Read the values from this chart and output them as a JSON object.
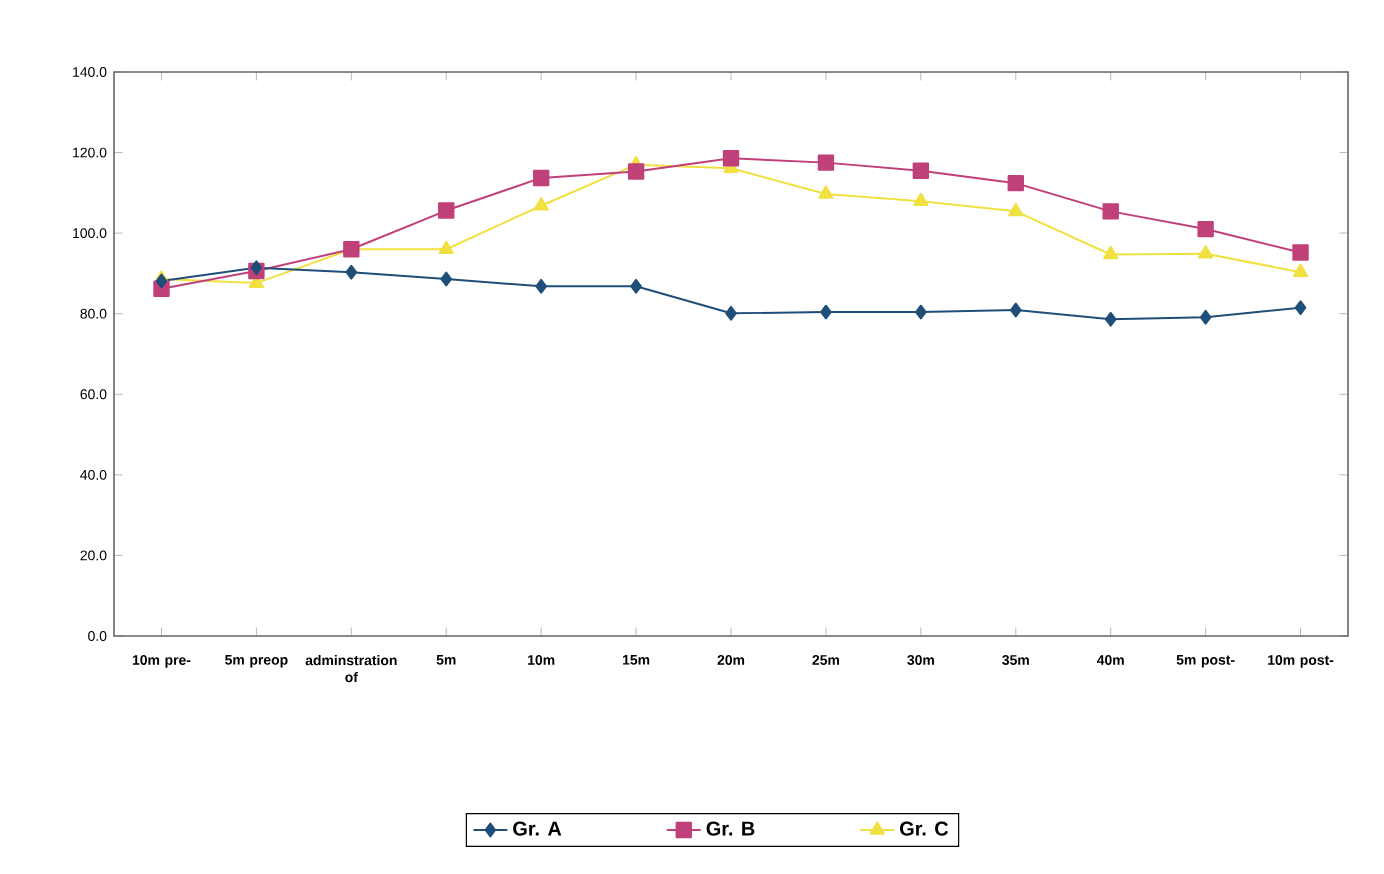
{
  "chart_data": {
    "type": "line",
    "categories": [
      "10m pre-",
      "5m preop",
      "adminstration of",
      "5m",
      "10m",
      "15m",
      "20m",
      "25m",
      "30m",
      "35m",
      "40m",
      "5m post-",
      "10m post-"
    ],
    "series": [
      {
        "name": "Gr. A",
        "color": "#1f4e79",
        "marker": "diamond",
        "values": [
          88.1,
          91.4,
          90.3,
          88.6,
          86.8,
          86.8,
          80.1,
          80.4,
          80.4,
          80.9,
          78.6,
          79.1,
          81.5
        ]
      },
      {
        "name": "Gr. B",
        "color": "#c0407a",
        "marker": "square",
        "values": [
          86.2,
          90.6,
          96.0,
          105.6,
          113.7,
          115.3,
          118.6,
          117.5,
          115.5,
          112.4,
          105.4,
          101.0,
          95.2
        ]
      },
      {
        "name": "Gr. C",
        "color": "#f0e040",
        "marker": "triangle",
        "values": [
          88.6,
          87.6,
          96.0,
          96.0,
          106.8,
          117.0,
          116.1,
          109.7,
          107.9,
          105.4,
          94.7,
          94.9,
          90.3
        ]
      }
    ],
    "ylim": [
      0,
      140
    ],
    "yticks": [
      {
        "value": 0,
        "label": "0.0"
      },
      {
        "value": 20,
        "label": "20.0"
      },
      {
        "value": 40,
        "label": "40.0"
      },
      {
        "value": 60,
        "label": "60.0"
      },
      {
        "value": 80,
        "label": "80.0"
      },
      {
        "value": 100,
        "label": "100.0"
      },
      {
        "value": 120,
        "label": "120.0"
      },
      {
        "value": 140,
        "label": "140.0"
      }
    ],
    "grid": false,
    "legend": "bottom"
  }
}
